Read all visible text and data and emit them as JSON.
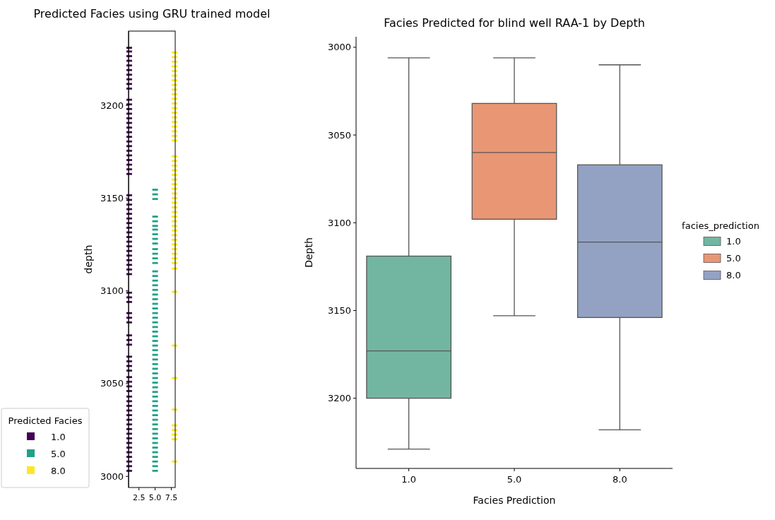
{
  "chart_data": [
    {
      "type": "scatter",
      "title": "Predicted Facies using GRU trained model",
      "ylabel": "depth",
      "xlim": [
        0.9,
        8.1
      ],
      "xticks": [
        2.5,
        {
          "value": 5,
          "label": "5.0"
        },
        7.5
      ],
      "ylim": [
        2994,
        3240
      ],
      "yticks": [
        3000,
        3050,
        3100,
        3150,
        3200
      ],
      "legend_title": "Predicted Facies",
      "legend": "bottom left",
      "series": [
        {
          "name": "1.0",
          "color": "#440154",
          "x": [
            1,
            1,
            1,
            1,
            1,
            1,
            1,
            1,
            1,
            1,
            1,
            1,
            1,
            1,
            1,
            1,
            1,
            1,
            1,
            1,
            1,
            1,
            1,
            1,
            1,
            1,
            1,
            1,
            1,
            1,
            1,
            1,
            1,
            1,
            1,
            1,
            1,
            1,
            1,
            1,
            1,
            1,
            1,
            1,
            1,
            1,
            1,
            1,
            1,
            1,
            1,
            1,
            1,
            1,
            1,
            1,
            1,
            1,
            1,
            1,
            1,
            1,
            1,
            1,
            1,
            1,
            1,
            1,
            1,
            1,
            1,
            1,
            1,
            1,
            1,
            1,
            1,
            1,
            1
          ],
          "values": [
            3003,
            3005.5,
            3008,
            3010.5,
            3013,
            3015.5,
            3018,
            3020.5,
            3023,
            3025.5,
            3028,
            3030.5,
            3033,
            3035.5,
            3038,
            3040.5,
            3043,
            3046,
            3048.5,
            3051,
            3053.5,
            3057,
            3059.5,
            3062,
            3064.5,
            3071,
            3073.5,
            3076,
            3083,
            3085.5,
            3088,
            3094,
            3096.5,
            3099,
            3109,
            3111.5,
            3114,
            3116.5,
            3119,
            3121.5,
            3124,
            3126.5,
            3129,
            3131.5,
            3134,
            3136.5,
            3139,
            3141.5,
            3144,
            3146.5,
            3149,
            3151.5,
            3163,
            3165.5,
            3168,
            3170.5,
            3173,
            3175.5,
            3178,
            3180.5,
            3183,
            3185.5,
            3188,
            3190.5,
            3193,
            3195.5,
            3198,
            3200.5,
            3203,
            3209,
            3211.5,
            3214,
            3216.5,
            3219,
            3221.5,
            3224,
            3226.5,
            3229,
            3231
          ]
        },
        {
          "name": "5.0",
          "color": "#1fa187",
          "x": [
            5,
            5,
            5,
            5,
            5,
            5,
            5,
            5,
            5,
            5,
            5,
            5,
            5,
            5,
            5,
            5,
            5,
            5,
            5,
            5,
            5,
            5,
            5,
            5,
            5,
            5,
            5,
            5,
            5,
            5,
            5,
            5,
            5,
            5,
            5,
            5,
            5,
            5,
            5,
            5,
            5,
            5,
            5,
            5,
            5,
            5,
            5,
            5,
            5,
            5,
            5,
            5,
            5,
            5,
            5,
            5,
            5,
            5
          ],
          "values": [
            3003,
            3005.5,
            3008,
            3010.5,
            3013,
            3015.5,
            3018,
            3020.5,
            3023,
            3025.5,
            3028,
            3030.5,
            3033,
            3035.5,
            3038,
            3040.5,
            3043,
            3045.5,
            3048,
            3050.5,
            3053,
            3055.5,
            3058,
            3060.5,
            3063,
            3065.5,
            3068,
            3070.5,
            3073,
            3075.5,
            3078,
            3080.5,
            3083,
            3085.5,
            3088,
            3090.5,
            3093,
            3095.5,
            3098,
            3100.5,
            3103,
            3105.5,
            3108,
            3110.5,
            3115,
            3117.5,
            3120,
            3122.5,
            3125.5,
            3128,
            3130.5,
            3133,
            3135,
            3137.5,
            3140,
            3149.5,
            3152,
            3154.5
          ]
        },
        {
          "name": "8.0",
          "color": "#fde725",
          "x": [
            8,
            8,
            8,
            8,
            8,
            8,
            8,
            8,
            8,
            8,
            8,
            8,
            8,
            8,
            8,
            8,
            8,
            8,
            8,
            8,
            8,
            8,
            8,
            8,
            8,
            8,
            8,
            8,
            8,
            8,
            8,
            8,
            8,
            8,
            8,
            8,
            8,
            8,
            8,
            8,
            8,
            8,
            8,
            8,
            8,
            8,
            8,
            8,
            8,
            8,
            8,
            8,
            8,
            8
          ],
          "values": [
            3008,
            3020,
            3022.5,
            3025,
            3027.5,
            3036,
            3053,
            3070.5,
            3099.5,
            3112,
            3115,
            3117.5,
            3120,
            3122.5,
            3125,
            3127.5,
            3130,
            3132.5,
            3135,
            3137.5,
            3140,
            3142.5,
            3145,
            3147.5,
            3150,
            3152.5,
            3155,
            3157.5,
            3160,
            3162.5,
            3165,
            3167.5,
            3170,
            3172.5,
            3181,
            3183.5,
            3186,
            3188.5,
            3191,
            3193.5,
            3196,
            3198.5,
            3201,
            3203.5,
            3206,
            3208.5,
            3211,
            3213.5,
            3216,
            3218.5,
            3221,
            3223.5,
            3226,
            3228.5
          ]
        }
      ]
    },
    {
      "type": "box",
      "title": "Facies Predicted for blind well RAA-1 by Depth",
      "xlabel": "Facies Prediction",
      "ylabel": "Depth",
      "categories": [
        "1.0",
        "5.0",
        "8.0"
      ],
      "ylim": [
        3240,
        2994
      ],
      "yticks": [
        3000,
        3050,
        3100,
        3150,
        3200
      ],
      "legend_title": "facies_prediction",
      "legend": "right",
      "series": [
        {
          "name": "1.0",
          "color": "#72b6a1",
          "boxes": [
            {
              "low": 3006,
              "q1": 3119,
              "median": 3173,
              "q3": 3200,
              "high": 3229
            },
            null,
            null
          ]
        },
        {
          "name": "5.0",
          "color": "#e99675",
          "boxes": [
            null,
            {
              "low": 3006,
              "q1": 3032,
              "median": 3060,
              "q3": 3098,
              "high": 3153
            },
            null
          ]
        },
        {
          "name": "8.0",
          "color": "#93a2c3",
          "boxes": [
            null,
            null,
            {
              "low": 3010,
              "q1": 3067,
              "median": 3111,
              "q3": 3154,
              "high": 3218
            }
          ]
        }
      ]
    }
  ]
}
